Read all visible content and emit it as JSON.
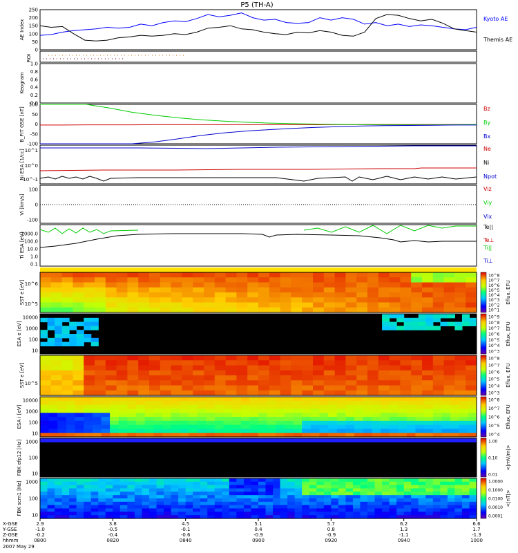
{
  "title": "P5 (TH-A)",
  "chart_data": [
    {
      "type": "line",
      "panel": "ae",
      "ylabel": "AE Index",
      "ylim": [
        0,
        250
      ],
      "yticks": [
        0,
        50,
        100,
        150,
        200,
        250
      ],
      "series": [
        {
          "name": "Kyoto AE",
          "color": "#0000ff",
          "values": [
            90,
            95,
            110,
            120,
            125,
            130,
            140,
            135,
            140,
            160,
            150,
            170,
            180,
            175,
            195,
            220,
            205,
            215,
            230,
            200,
            185,
            190,
            170,
            165,
            170,
            200,
            185,
            200,
            190,
            160,
            170,
            150,
            160,
            145,
            155,
            150,
            140,
            130,
            125,
            140
          ]
        },
        {
          "name": "Themis AE",
          "color": "#000000",
          "values": [
            150,
            140,
            145,
            100,
            60,
            55,
            60,
            75,
            80,
            90,
            85,
            90,
            100,
            95,
            110,
            135,
            140,
            150,
            130,
            125,
            110,
            100,
            95,
            110,
            105,
            120,
            110,
            90,
            85,
            110,
            195,
            220,
            215,
            195,
            180,
            190,
            165,
            130,
            120,
            110
          ]
        }
      ]
    },
    {
      "type": "line",
      "panel": "roi",
      "ylabel": "ROI"
    },
    {
      "type": "line",
      "panel": "keogram",
      "ylabel": "Keogram",
      "ylim": [
        0,
        1
      ],
      "yticks": [
        "0.0",
        "0.2",
        "0.4",
        "0.6",
        "0.8",
        "1.0"
      ]
    },
    {
      "type": "line",
      "panel": "bfield",
      "ylabel": "B_FIT GSE [nT]",
      "ylim": [
        -100,
        100
      ],
      "yticks": [
        -100,
        -50,
        0,
        50,
        100
      ],
      "series": [
        {
          "name": "Bz",
          "color": "#cc0000",
          "values": [
            -5,
            -5,
            -4,
            -4,
            -4,
            -3,
            -3,
            -3,
            -3,
            -3,
            -3,
            -3,
            -3,
            -3,
            -2,
            -2,
            -2,
            -2,
            -2,
            -2
          ]
        },
        {
          "name": "By",
          "color": "#00cc00",
          "values": [
            100,
            100,
            100,
            82,
            60,
            45,
            32,
            22,
            15,
            9,
            5,
            2,
            0,
            -2,
            -3,
            -4,
            -4,
            -4,
            -3,
            -2
          ]
        },
        {
          "name": "Bx",
          "color": "#0000cc",
          "values": [
            -100,
            -100,
            -100,
            -100,
            -100,
            -90,
            -75,
            -58,
            -45,
            -35,
            -28,
            -22,
            -17,
            -13,
            -10,
            -8,
            -7,
            -6,
            -5,
            -5
          ]
        }
      ]
    },
    {
      "type": "line",
      "panel": "density",
      "ylabel": "Ni ESA [1/cc]",
      "ytick_labels": [
        "10^1",
        "10^0",
        "10^-1"
      ],
      "series": [
        {
          "name": "Ne",
          "color": "#cc0000"
        },
        {
          "name": "Ni",
          "color": "#000000"
        },
        {
          "name": "Npot",
          "color": "#0000cc"
        }
      ]
    },
    {
      "type": "line",
      "panel": "velocity",
      "ylabel": "Vi [km/s]",
      "yticks": [
        -100,
        0,
        100
      ],
      "series": [
        {
          "name": "Viz",
          "color": "#cc0000"
        },
        {
          "name": "Viy",
          "color": "#00cc00"
        },
        {
          "name": "Vix",
          "color": "#0000cc"
        }
      ]
    },
    {
      "type": "line",
      "panel": "temperature",
      "ylabel": "Ti ESA [eV]",
      "yticks": [
        "1000.0",
        "100.0",
        "10.0",
        "1.0",
        "0.1"
      ],
      "series": [
        {
          "name": "Te||",
          "color": "#000000"
        },
        {
          "name": "Te⊥",
          "color": "#cc0000"
        },
        {
          "name": "Ti||",
          "color": "#00cc00"
        },
        {
          "name": "Ti⊥",
          "color": "#0000cc"
        }
      ]
    },
    {
      "type": "heatmap",
      "panel": "sst_e",
      "ylabel": "SST e [eV]",
      "ytick_labels": [
        "10^6",
        "10^5"
      ],
      "colorbar_label": "Eflux, EFU",
      "colorbar_ticks": [
        "10^8",
        "10^7",
        "10^6",
        "10^5",
        "10^4",
        "10^3",
        "10^2",
        "10^1"
      ]
    },
    {
      "type": "heatmap",
      "panel": "esa_e",
      "ylabel": "ESA e [eV]",
      "yticks": [
        "10000",
        "1000",
        "100",
        "10"
      ],
      "colorbar_label": "Eflux, EFU",
      "colorbar_ticks": [
        "10^9",
        "10^8",
        "10^7",
        "10^6",
        "10^5",
        "10^4",
        "10^3"
      ]
    },
    {
      "type": "heatmap",
      "panel": "sst_i",
      "ylabel": "SST e [eV]",
      "ytick_labels": [
        "10^5"
      ],
      "colorbar_label": "Eflux, EFU",
      "colorbar_ticks": [
        "10^8",
        "10^7",
        "10^6",
        "10^5",
        "10^4",
        "10^3"
      ]
    },
    {
      "type": "heatmap",
      "panel": "esa_i",
      "ylabel": "ESA i [eV]",
      "yticks": [
        "10000",
        "1000",
        "100",
        "10"
      ],
      "colorbar_label": "Eflux, EFU",
      "colorbar_ticks": [
        "10^8",
        "10^7",
        "10^6",
        "10^5",
        "10^4"
      ]
    },
    {
      "type": "heatmap",
      "panel": "fbk_e",
      "ylabel": "FBK efp12 [Hz]",
      "yticks": [
        "1000",
        "100",
        "10"
      ],
      "colorbar_label": "<|mV/m|>",
      "colorbar_ticks": [
        "1.00",
        "0.10",
        "0.01"
      ]
    },
    {
      "type": "heatmap",
      "panel": "fbk_b",
      "ylabel": "FBK scm1 [Hz]",
      "yticks": [
        "1000",
        "100",
        "10"
      ],
      "colorbar_label": "<|nT|>",
      "colorbar_ticks": [
        "1.0000",
        "0.1000",
        "0.0100",
        "0.0010",
        "0.0001"
      ]
    }
  ],
  "footer": {
    "row_labels": [
      "X-GSE",
      "Y-GSE",
      "Z-GSE",
      "hhmm",
      "2007 May 29"
    ],
    "columns": [
      [
        "2.9",
        "-1.0",
        "-0.2",
        "0800"
      ],
      [
        "3.8",
        "-0.5",
        "-0.4",
        "0820"
      ],
      [
        "4.5",
        "-0.1",
        "-0.6",
        "0840"
      ],
      [
        "5.1",
        "0.4",
        "-0.9",
        "0900"
      ],
      [
        "5.7",
        "0.8",
        "-0.9",
        "0920"
      ],
      [
        "6.2",
        "1.3",
        "-1.1",
        "0940"
      ],
      [
        "6.6",
        "1.7",
        "-1.3",
        "1000"
      ]
    ]
  }
}
